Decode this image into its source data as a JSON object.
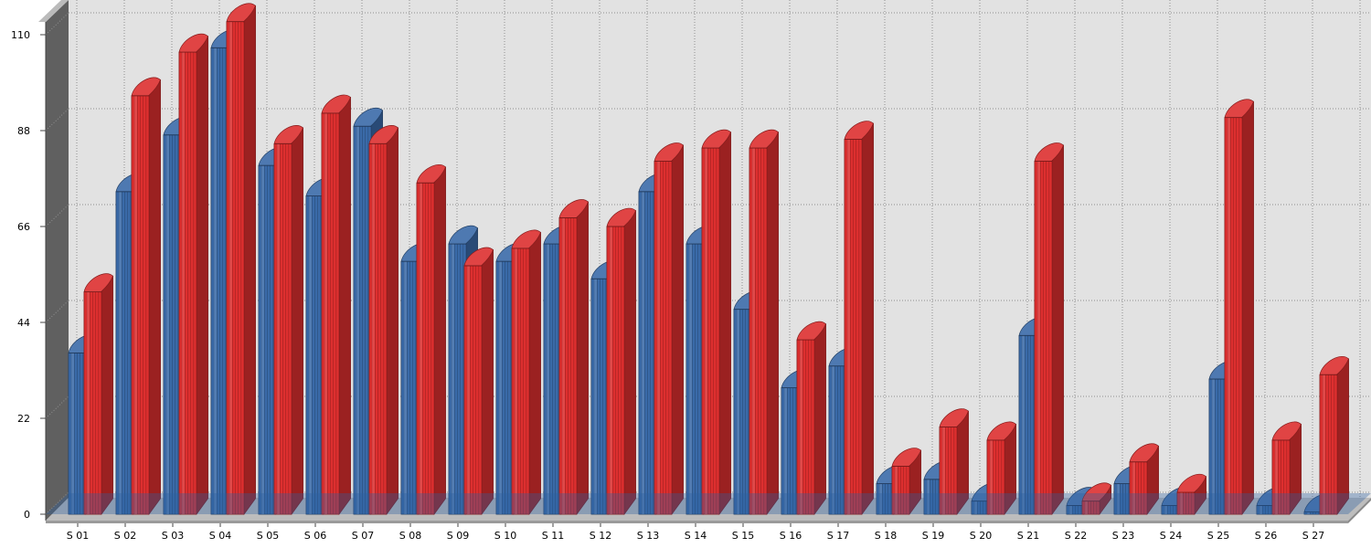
{
  "chart_data": {
    "type": "bar",
    "title": "",
    "xlabel": "",
    "ylabel": "",
    "ylim": [
      0,
      110
    ],
    "yticks": [
      0,
      22,
      44,
      66,
      88,
      110
    ],
    "grid": true,
    "legend": "none",
    "categories": [
      "S 01",
      "S 02",
      "S 03",
      "S 04",
      "S 05",
      "S 06",
      "S 07",
      "S 08",
      "S 09",
      "S 10",
      "S 11",
      "S 12",
      "S 13",
      "S 14",
      "S 15",
      "S 16",
      "S 17",
      "S 18",
      "S 19",
      "S 20",
      "S 21",
      "S 22",
      "S 23",
      "S 24",
      "S 25",
      "S 26",
      "S 27"
    ],
    "series": [
      {
        "color": "#3a6aa8",
        "values": [
          37,
          74,
          87,
          107,
          80,
          73,
          89,
          58,
          62,
          58,
          62,
          54,
          74,
          62,
          47,
          29,
          34,
          7,
          8,
          3,
          41,
          2,
          7,
          2,
          31,
          2,
          0.5
        ]
      },
      {
        "color": "#dd2f2f",
        "values": [
          51,
          96,
          106,
          113,
          85,
          92,
          85,
          76,
          57,
          61,
          68,
          66,
          81,
          84,
          84,
          40,
          86,
          11,
          20,
          17,
          81,
          3,
          12,
          5,
          91,
          17,
          32
        ]
      }
    ]
  }
}
